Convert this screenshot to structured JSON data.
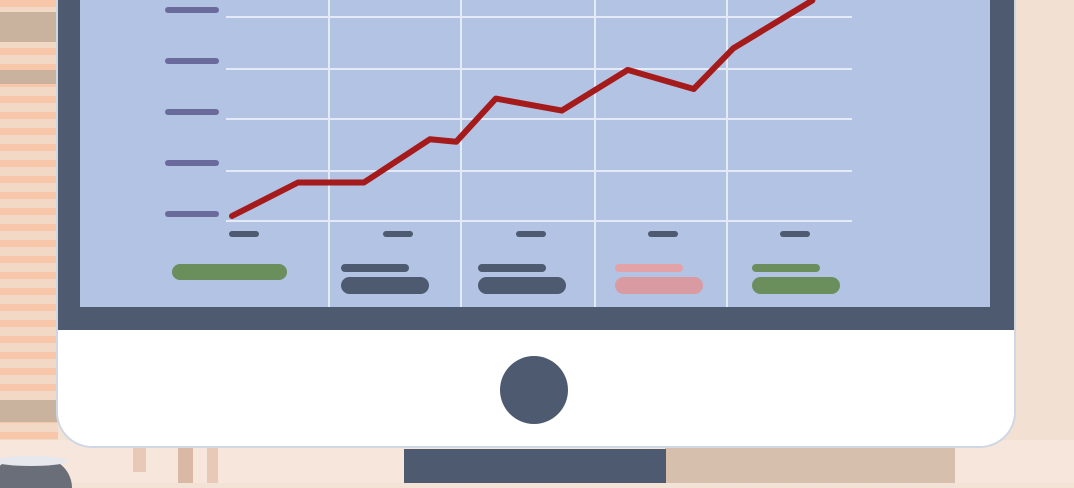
{
  "colors": {
    "screen": "#b3c3e3",
    "bezel": "#4d5a70",
    "grid": "#e4ebf7",
    "line": "#a51a1a",
    "y_tick": "#6b6a9c",
    "x_tick": "#4d5a70",
    "legend_green": "#6a8f5c",
    "legend_navy": "#4d5a70",
    "legend_pink": "#d99aa2",
    "legend_pink_light": "#e3a1a8"
  },
  "icons": [
    "power-button-icon",
    "coffee-mug-icon",
    "window-blinds-icon"
  ],
  "chart_data": {
    "type": "line",
    "x": [
      0,
      1,
      2,
      3,
      3.4,
      4,
      5,
      6,
      7,
      7.6,
      8.8
    ],
    "series": [
      {
        "values": [
          0,
          0.7,
          0.7,
          1.6,
          1.55,
          2.45,
          2.2,
          3.05,
          2.65,
          3.5,
          4.5
        ]
      }
    ],
    "xlim": [
      0,
      9.4
    ],
    "ylim": [
      0,
      4.3
    ],
    "grid": true,
    "y_ticks": 5,
    "x_ticks": 5,
    "legend_columns": [
      {
        "color_key": "legend_green",
        "bars": [
          "long"
        ]
      },
      {
        "color_key": "legend_navy",
        "bars": [
          "short",
          "long"
        ]
      },
      {
        "color_key": "legend_navy",
        "bars": [
          "short",
          "long"
        ]
      },
      {
        "color_key": "legend_pink",
        "bars": [
          "short",
          "long"
        ]
      },
      {
        "color_key": "legend_green",
        "bars": [
          "short",
          "long"
        ]
      }
    ]
  }
}
